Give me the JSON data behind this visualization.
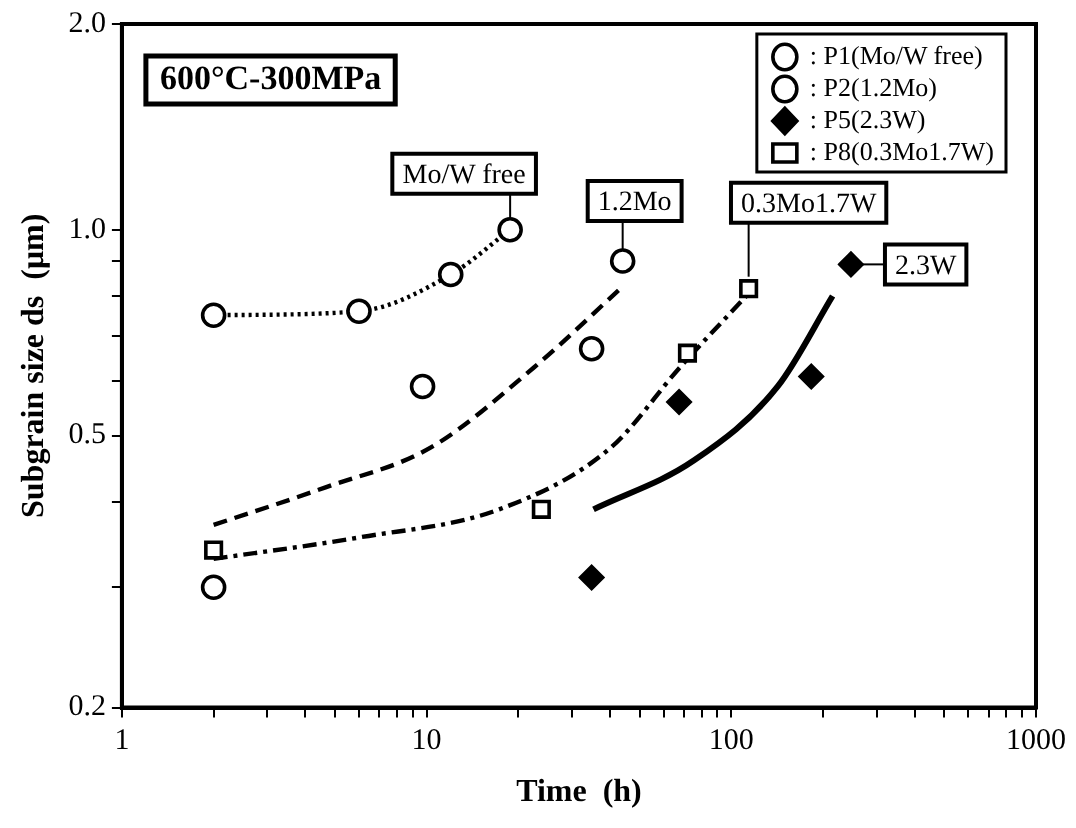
{
  "chart_data": {
    "type": "scatter",
    "xlabel": "Time  (h)",
    "ylabel": "Subgrain size ds  (μm)",
    "log": "xy",
    "grid": false,
    "legend": "top right",
    "xlim": [
      1,
      1000
    ],
    "xticks": [
      1,
      {
        "value": 2,
        "label": null
      },
      {
        "value": 3,
        "label": null
      },
      {
        "value": 4,
        "label": null
      },
      {
        "value": 5,
        "label": null
      },
      {
        "value": 6,
        "label": null
      },
      {
        "value": 7,
        "label": null
      },
      {
        "value": 8,
        "label": null
      },
      {
        "value": 9,
        "label": null
      },
      10,
      {
        "value": 20,
        "label": null
      },
      {
        "value": 30,
        "label": null
      },
      {
        "value": 40,
        "label": null
      },
      {
        "value": 50,
        "label": null
      },
      {
        "value": 60,
        "label": null
      },
      {
        "value": 70,
        "label": null
      },
      {
        "value": 80,
        "label": null
      },
      {
        "value": 90,
        "label": null
      },
      100,
      {
        "value": 200,
        "label": null
      },
      {
        "value": 300,
        "label": null
      },
      {
        "value": 400,
        "label": null
      },
      {
        "value": 500,
        "label": null
      },
      {
        "value": 600,
        "label": null
      },
      {
        "value": 700,
        "label": null
      },
      {
        "value": 800,
        "label": null
      },
      {
        "value": 900,
        "label": null
      },
      1000
    ],
    "ylim": [
      0.2,
      2
    ],
    "yticks": [
      0.2,
      {
        "value": 0.3,
        "label": null
      },
      {
        "value": 0.4,
        "label": null
      },
      0.5,
      {
        "value": 0.6,
        "label": null
      },
      {
        "value": 0.7,
        "label": null
      },
      {
        "value": 0.8,
        "label": null
      },
      {
        "value": 0.9,
        "label": null
      },
      {
        "value": 1,
        "label": "1.0"
      },
      {
        "value": 2,
        "label": "2.0"
      }
    ],
    "series": [
      {
        "name": ": P1(Mo/W free)",
        "type": "scatter",
        "marker": "circle",
        "color": "#000000",
        "x": [
          2.0,
          6.0,
          12.0,
          18.8
        ],
        "values": [
          0.75,
          0.76,
          0.86,
          1.0
        ]
      },
      {
        "name": ": P2(1.2Mo)",
        "type": "scatter",
        "marker": "circle",
        "color": "#000000",
        "x": [
          2.0,
          9.7,
          34.8,
          44
        ],
        "values": [
          0.3,
          0.59,
          0.67,
          0.9
        ]
      },
      {
        "name": ": P5(2.3W)",
        "type": "scatter",
        "marker": "diamond",
        "color": "#000000",
        "x": [
          34.8,
          67.4,
          183,
          247
        ],
        "values": [
          0.31,
          0.56,
          0.61,
          0.89
        ]
      },
      {
        "name": ": P8(0.3Mo1.7W)",
        "type": "scatter",
        "marker": "square",
        "color": "#000000",
        "x": [
          2.0,
          23.8,
          71.8,
          114
        ],
        "values": [
          0.34,
          0.39,
          0.66,
          0.82
        ]
      },
      {
        "type": "line",
        "marker": "none",
        "line_style": "dotted",
        "color": "#000000",
        "x": [
          2.0,
          6.0,
          12.0,
          18.8
        ],
        "values": [
          0.75,
          0.76,
          0.86,
          1.0
        ]
      },
      {
        "type": "line",
        "marker": "none",
        "line_style": "dashed",
        "color": "#000000",
        "x": [
          2.0,
          4.66,
          10.3,
          22.6,
          44.5
        ],
        "values": [
          0.37,
          0.42,
          0.48,
          0.63,
          0.83
        ]
      },
      {
        "type": "line",
        "marker": "none",
        "line_style": "dashdot",
        "color": "#000000",
        "x": [
          2.0,
          6.06,
          17.3,
          40.2,
          68,
          112
        ],
        "values": [
          0.33,
          0.355,
          0.39,
          0.48,
          0.63,
          0.8
        ]
      },
      {
        "type": "line",
        "marker": "none",
        "line_style": "solid",
        "color": "#000000",
        "x": [
          35.3,
          75.5,
          142,
          215
        ],
        "values": [
          0.39,
          0.46,
          0.59,
          0.8
        ]
      }
    ],
    "annotations": [
      "600°C-300MPa",
      {
        "text": "Mo/W free",
        "x": 18.8,
        "y": 1.0
      },
      {
        "text": "1.2Mo",
        "x": 44,
        "y": 0.9
      },
      {
        "text": "0.3Mo1.7W",
        "x": 114,
        "y": 0.82
      },
      {
        "text": "2.3W",
        "x": 247,
        "y": 0.89
      }
    ]
  }
}
